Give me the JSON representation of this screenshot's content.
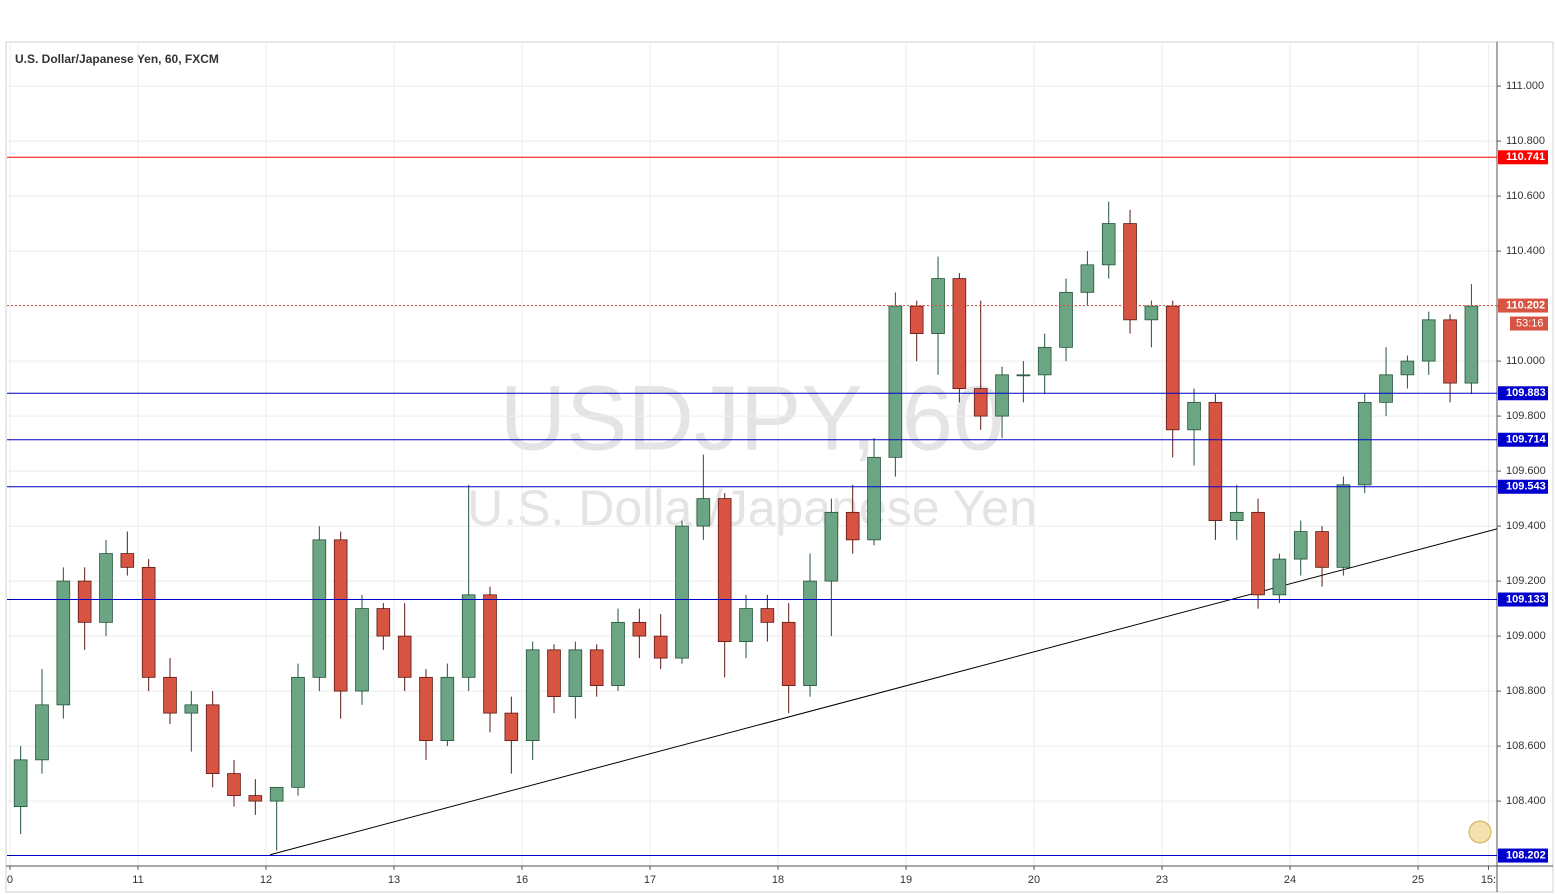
{
  "chart_data": {
    "type": "candlestick",
    "title": "U.S. Dollar/Japanese Yen, 60, FXCM",
    "watermark": "USDJPY, 60",
    "watermark_subtitle": "U.S. Dollar/Japanese Yen",
    "up_color": "#6ba583",
    "down_color": "#d75442",
    "open": [
      108.38,
      108.55,
      108.75,
      109.2,
      109.05,
      109.3,
      109.25,
      108.85,
      108.72,
      108.75,
      108.5,
      108.42,
      108.4,
      108.45,
      108.85,
      109.35,
      108.8,
      109.1,
      109.0,
      108.85,
      108.62,
      108.85,
      109.15,
      108.72,
      108.62,
      108.95,
      108.78,
      108.95,
      108.82,
      109.05,
      109.0,
      108.92,
      109.4,
      109.5,
      108.98,
      109.1,
      109.05,
      108.82,
      109.2,
      109.45,
      109.35,
      109.65,
      110.2,
      110.1,
      110.3,
      109.9,
      109.8,
      109.95,
      109.95,
      110.05,
      110.25,
      110.35,
      110.5,
      110.15,
      110.2,
      109.75,
      109.85,
      109.42,
      109.45,
      109.15,
      109.28,
      109.38,
      109.25,
      109.55,
      109.85,
      109.95,
      110.0,
      110.15,
      109.92
    ],
    "high": [
      108.6,
      108.88,
      109.25,
      109.25,
      109.35,
      109.38,
      109.28,
      108.92,
      108.8,
      108.8,
      108.55,
      108.48,
      108.45,
      108.9,
      109.4,
      109.38,
      109.15,
      109.12,
      109.12,
      108.88,
      108.9,
      109.55,
      109.18,
      108.78,
      108.98,
      108.97,
      108.98,
      108.97,
      109.1,
      109.1,
      109.08,
      109.42,
      109.66,
      109.52,
      109.15,
      109.15,
      109.12,
      109.3,
      109.5,
      109.55,
      109.72,
      110.25,
      110.22,
      110.38,
      110.32,
      110.22,
      109.98,
      110.0,
      110.1,
      110.3,
      110.4,
      110.58,
      110.55,
      110.22,
      110.22,
      109.9,
      109.88,
      109.55,
      109.5,
      109.3,
      109.42,
      109.4,
      109.58,
      109.88,
      110.05,
      110.02,
      110.18,
      110.17,
      110.28
    ],
    "low": [
      108.28,
      108.5,
      108.7,
      108.95,
      109.0,
      109.22,
      108.8,
      108.68,
      108.58,
      108.45,
      108.38,
      108.35,
      108.22,
      108.42,
      108.8,
      108.7,
      108.75,
      108.95,
      108.8,
      108.55,
      108.6,
      108.8,
      108.65,
      108.5,
      108.55,
      108.72,
      108.7,
      108.78,
      108.8,
      108.92,
      108.88,
      108.9,
      109.35,
      108.85,
      108.92,
      108.98,
      108.72,
      108.78,
      109.0,
      109.3,
      109.33,
      109.58,
      110.0,
      109.95,
      109.85,
      109.75,
      109.72,
      109.85,
      109.88,
      110.0,
      110.2,
      110.3,
      110.1,
      110.05,
      109.65,
      109.62,
      109.35,
      109.35,
      109.1,
      109.12,
      109.22,
      109.18,
      109.22,
      109.52,
      109.8,
      109.9,
      109.95,
      109.85,
      109.88
    ],
    "close": [
      108.55,
      108.75,
      109.2,
      109.05,
      109.3,
      109.25,
      108.85,
      108.72,
      108.75,
      108.5,
      108.42,
      108.4,
      108.45,
      108.85,
      109.35,
      108.8,
      109.1,
      109.0,
      108.85,
      108.62,
      108.85,
      109.15,
      108.72,
      108.62,
      108.95,
      108.78,
      108.95,
      108.82,
      109.05,
      109.0,
      108.92,
      109.4,
      109.5,
      108.98,
      109.1,
      109.05,
      108.82,
      109.2,
      109.45,
      109.35,
      109.65,
      110.2,
      110.1,
      110.3,
      109.9,
      109.8,
      109.95,
      109.95,
      110.05,
      110.25,
      110.35,
      110.5,
      110.15,
      110.2,
      109.75,
      109.85,
      109.42,
      109.45,
      109.15,
      109.28,
      109.38,
      109.25,
      109.55,
      109.85,
      109.95,
      110.0,
      110.15,
      109.92,
      110.2
    ],
    "xlim": [
      -0.14,
      69.7
    ],
    "xticks": [
      {
        "value": 0,
        "label": "0"
      },
      {
        "value": 6,
        "label": "11"
      },
      {
        "value": 12,
        "label": "12"
      },
      {
        "value": 18,
        "label": "13"
      },
      {
        "value": 24,
        "label": "16"
      },
      {
        "value": 30,
        "label": "17"
      },
      {
        "value": 36,
        "label": "18"
      },
      {
        "value": 42,
        "label": "19"
      },
      {
        "value": 48,
        "label": "20"
      },
      {
        "value": 54,
        "label": "23"
      },
      {
        "value": 60,
        "label": "24"
      },
      {
        "value": 66,
        "label": "25"
      },
      {
        "value": 69.3,
        "label": "15:"
      }
    ],
    "ylim": [
      108.164,
      111.153
    ],
    "yticks": [
      {
        "value": 108.4,
        "label": "108.400"
      },
      {
        "value": 108.6,
        "label": "108.600"
      },
      {
        "value": 108.8,
        "label": "108.800"
      },
      {
        "value": 109.0,
        "label": "109.000"
      },
      {
        "value": 109.2,
        "label": "109.200"
      },
      {
        "value": 109.4,
        "label": "109.400"
      },
      {
        "value": 109.6,
        "label": "109.600"
      },
      {
        "value": 109.8,
        "label": "109.800"
      },
      {
        "value": 110.0,
        "label": "110.000"
      },
      {
        "value": 110.2,
        "label": "110.200"
      },
      {
        "value": 110.4,
        "label": "110.400"
      },
      {
        "value": 110.6,
        "label": "110.600"
      },
      {
        "value": 110.8,
        "label": "110.800"
      },
      {
        "value": 111.0,
        "label": "111.000"
      }
    ],
    "grid": true,
    "levels": [
      {
        "value": 110.741,
        "color": "#ff0000",
        "style": "solid"
      },
      {
        "value": 110.202,
        "color": "#d75442",
        "style": "dotted",
        "countdown": "53:16"
      },
      {
        "value": 109.883,
        "color": "#0000cc",
        "style": "solid"
      },
      {
        "value": 109.714,
        "color": "#0000cc",
        "style": "solid"
      },
      {
        "value": 109.543,
        "color": "#0000cc",
        "style": "solid"
      },
      {
        "value": 109.133,
        "color": "#0000cc",
        "style": "solid"
      },
      {
        "value": 108.202,
        "color": "#0000cc",
        "style": "solid"
      }
    ],
    "trendline": {
      "x": [
        12.19,
        69.7
      ],
      "y": [
        108.205,
        109.39
      ]
    }
  }
}
